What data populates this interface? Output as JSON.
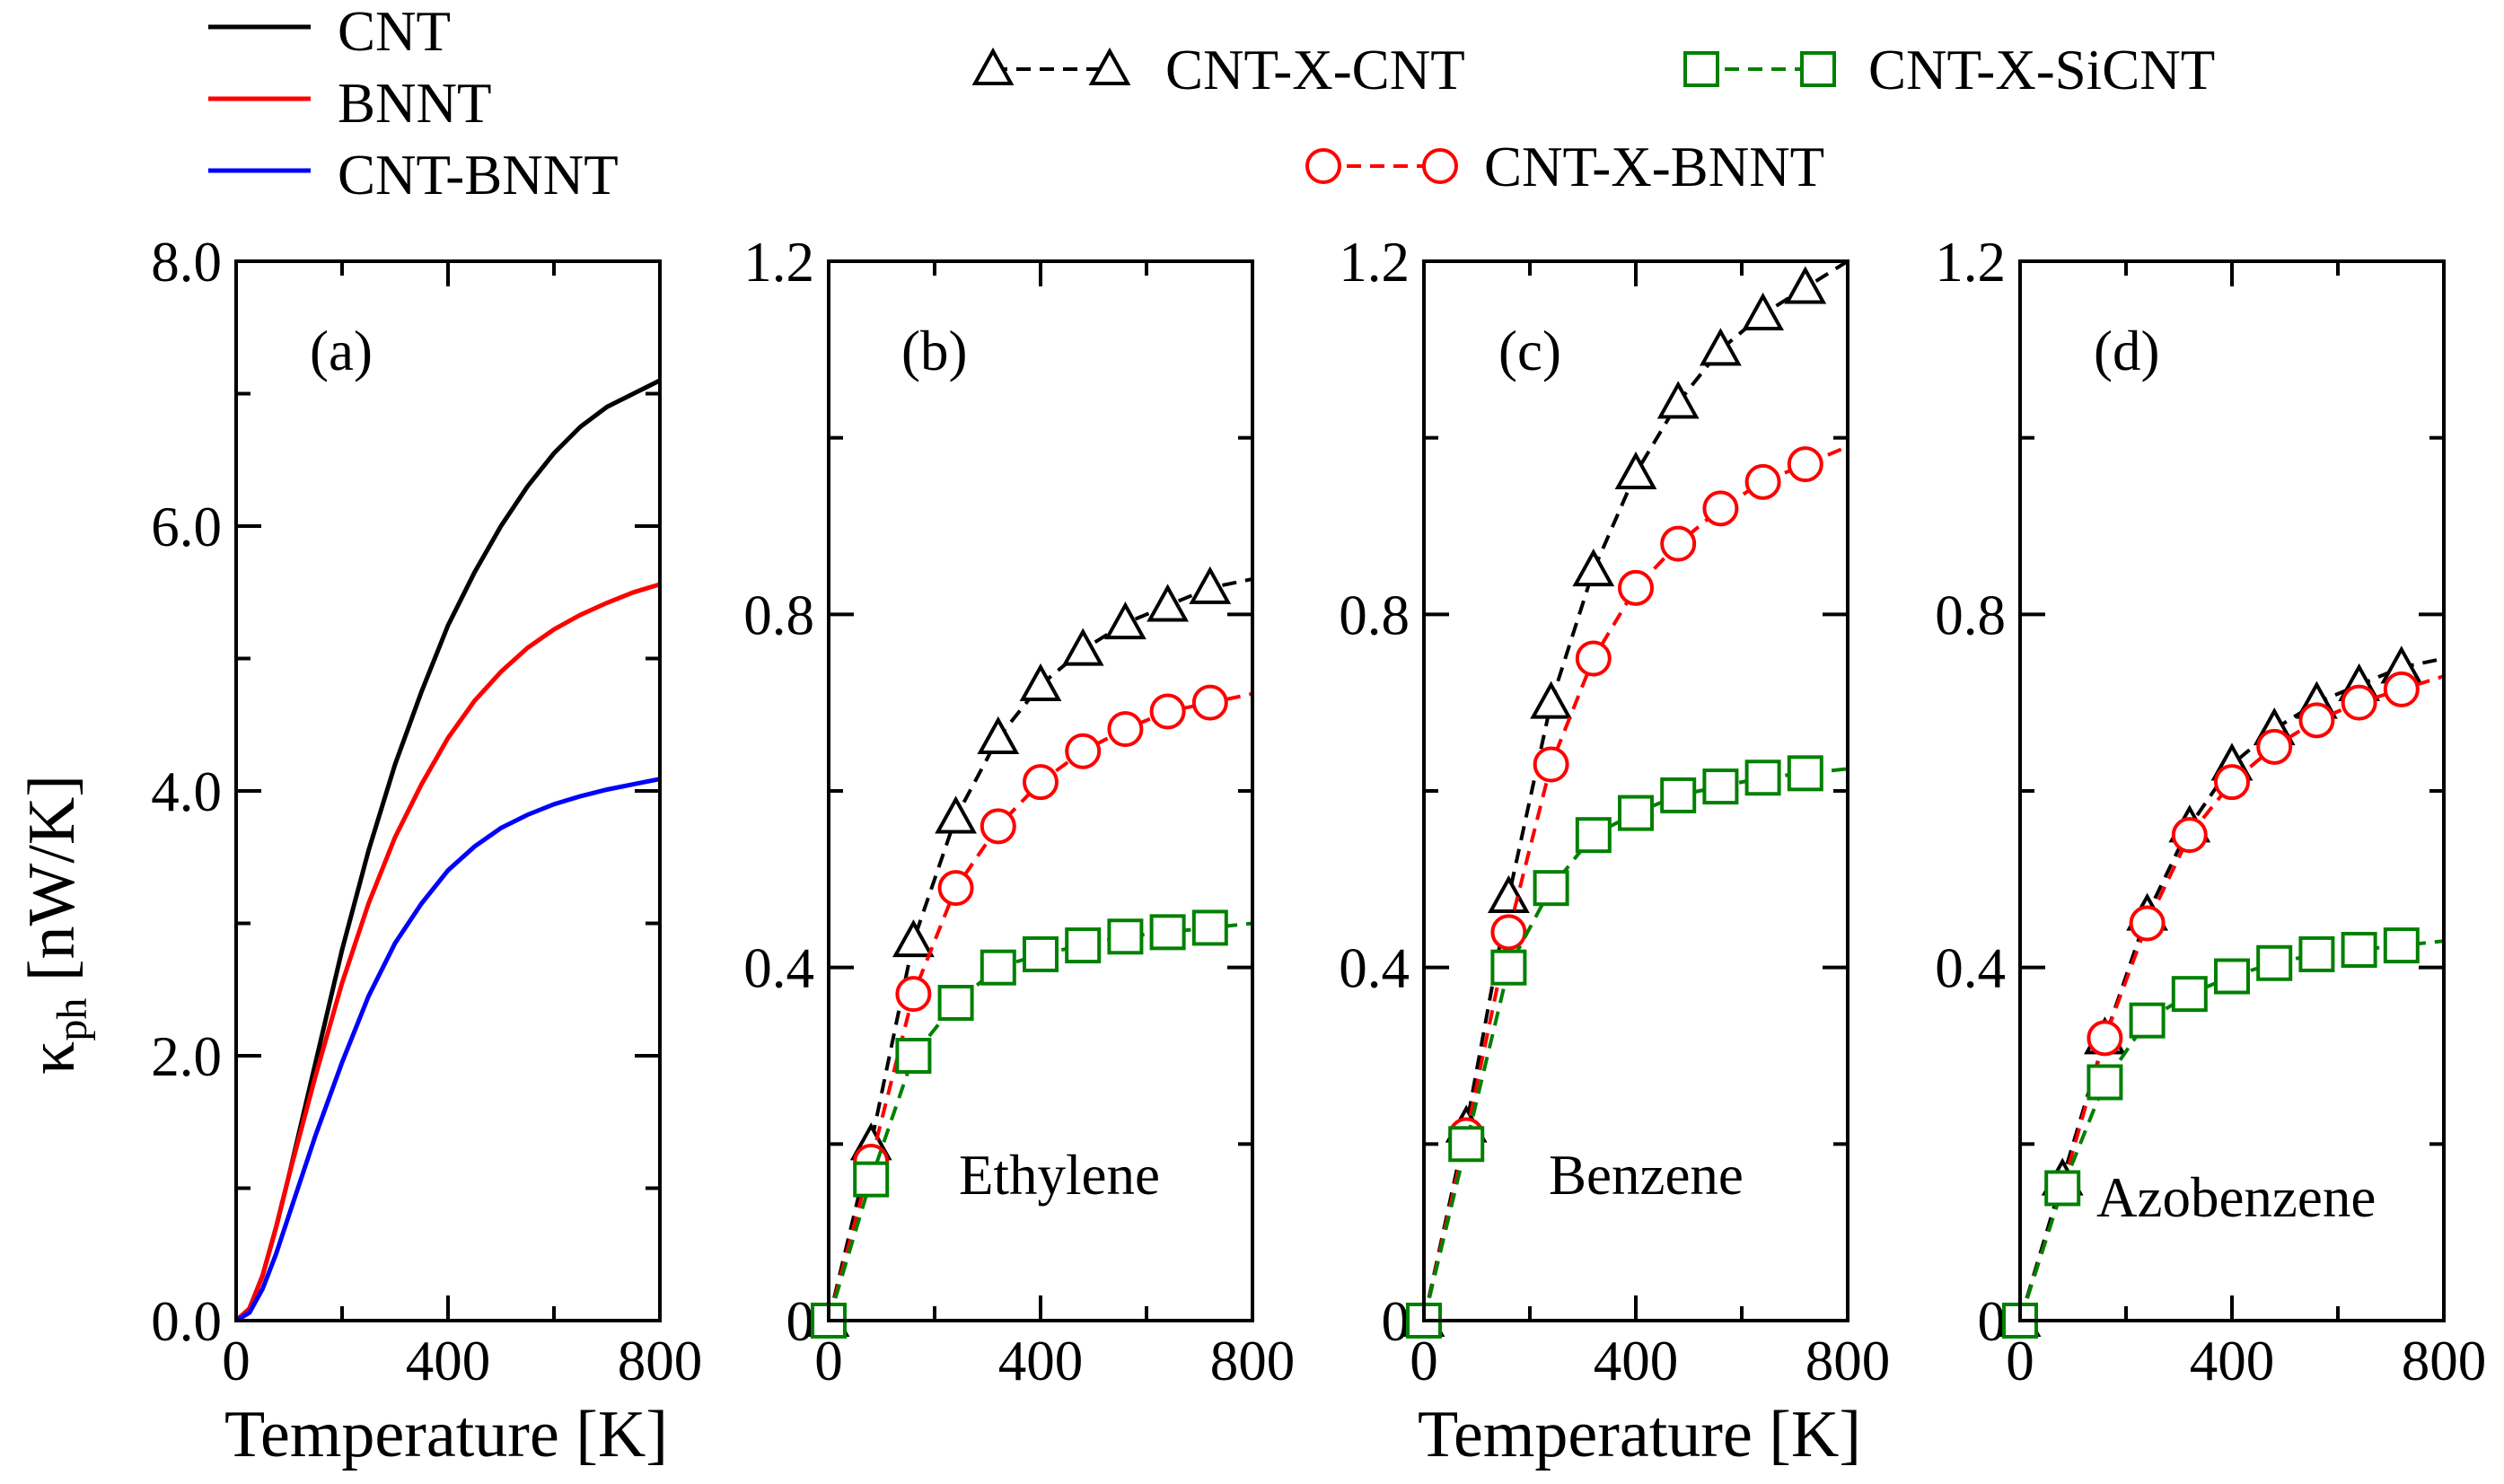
{
  "figure": {
    "ylabel_main": "κ",
    "ylabel_sub": "ph",
    "ylabel_unit": " [nW/K]",
    "xlabel": "Temperature [K]"
  },
  "legend": {
    "left": [
      {
        "label": "CNT",
        "color": "#000000"
      },
      {
        "label": "BNNT",
        "color": "#ff0000"
      },
      {
        "label": "CNT-BNNT",
        "color": "#0000ff"
      }
    ],
    "right": [
      {
        "label": "CNT-X-CNT",
        "color": "#000000",
        "marker": "triangle"
      },
      {
        "label": "CNT-X-SiCNT",
        "color": "#008000",
        "marker": "square"
      },
      {
        "label": "CNT-X-BNNT",
        "color": "#ff0000",
        "marker": "circle"
      }
    ]
  },
  "chart_data": [
    {
      "id": "a",
      "type": "line",
      "panel_label": "(a)",
      "annotation": "",
      "xlim": [
        0,
        800
      ],
      "ylim": [
        0,
        8
      ],
      "xticks": [
        "0",
        "400",
        "800"
      ],
      "yticks": [
        "0.0",
        "2.0",
        "4.0",
        "6.0",
        "8.0"
      ],
      "ytick_values": [
        0,
        2,
        4,
        6,
        8
      ],
      "series": [
        {
          "name": "CNT",
          "color": "#000000",
          "x": [
            0,
            25,
            50,
            75,
            100,
            150,
            200,
            250,
            300,
            350,
            400,
            450,
            500,
            550,
            600,
            650,
            700,
            750,
            800
          ],
          "y": [
            0,
            0.09,
            0.34,
            0.7,
            1.1,
            1.95,
            2.8,
            3.55,
            4.2,
            4.75,
            5.25,
            5.65,
            6.0,
            6.3,
            6.55,
            6.75,
            6.9,
            7.0,
            7.1
          ]
        },
        {
          "name": "BNNT",
          "color": "#ff0000",
          "x": [
            0,
            25,
            50,
            75,
            100,
            150,
            200,
            250,
            300,
            350,
            400,
            450,
            500,
            550,
            600,
            650,
            700,
            750,
            800
          ],
          "y": [
            0,
            0.09,
            0.34,
            0.7,
            1.1,
            1.85,
            2.55,
            3.15,
            3.65,
            4.05,
            4.4,
            4.68,
            4.9,
            5.08,
            5.22,
            5.33,
            5.42,
            5.5,
            5.56
          ]
        },
        {
          "name": "CNT-BNNT",
          "color": "#0000ff",
          "x": [
            0,
            25,
            50,
            75,
            100,
            150,
            200,
            250,
            300,
            350,
            400,
            450,
            500,
            550,
            600,
            650,
            700,
            750,
            800
          ],
          "y": [
            0,
            0.06,
            0.24,
            0.5,
            0.8,
            1.4,
            1.95,
            2.45,
            2.85,
            3.15,
            3.4,
            3.58,
            3.72,
            3.82,
            3.9,
            3.96,
            4.01,
            4.05,
            4.09
          ]
        }
      ]
    },
    {
      "id": "b",
      "type": "line",
      "panel_label": "(b)",
      "annotation": "Ethylene",
      "xlim": [
        0,
        800
      ],
      "ylim": [
        0,
        1.2
      ],
      "xticks": [
        "0",
        "400",
        "800"
      ],
      "yticks": [
        "0",
        "0.4",
        "0.8",
        "1.2"
      ],
      "ytick_values": [
        0,
        0.4,
        0.8,
        1.2
      ],
      "series": [
        {
          "name": "CNT-X-CNT",
          "color": "#000000",
          "marker": "triangle",
          "x": [
            0,
            80,
            160,
            240,
            320,
            400,
            480,
            560,
            640,
            720,
            800
          ],
          "y": [
            0,
            0.2,
            0.43,
            0.57,
            0.66,
            0.72,
            0.76,
            0.79,
            0.81,
            0.83,
            0.84
          ]
        },
        {
          "name": "CNT-X-BNNT",
          "color": "#ff0000",
          "marker": "circle",
          "x": [
            0,
            80,
            160,
            240,
            320,
            400,
            480,
            560,
            640,
            720,
            800
          ],
          "y": [
            0,
            0.18,
            0.37,
            0.49,
            0.56,
            0.61,
            0.645,
            0.67,
            0.69,
            0.7,
            0.71
          ]
        },
        {
          "name": "CNT-X-SiCNT",
          "color": "#008000",
          "marker": "square",
          "x": [
            0,
            80,
            160,
            240,
            320,
            400,
            480,
            560,
            640,
            720,
            800
          ],
          "y": [
            0,
            0.16,
            0.3,
            0.36,
            0.4,
            0.415,
            0.425,
            0.435,
            0.44,
            0.445,
            0.45
          ]
        }
      ]
    },
    {
      "id": "c",
      "type": "line",
      "panel_label": "(c)",
      "annotation": "Benzene",
      "xlim": [
        0,
        800
      ],
      "ylim": [
        0,
        1.2
      ],
      "xticks": [
        "0",
        "400",
        "800"
      ],
      "yticks": [
        "0",
        "0.4",
        "0.8",
        "1.2"
      ],
      "ytick_values": [
        0,
        0.4,
        0.8,
        1.2
      ],
      "series": [
        {
          "name": "CNT-X-CNT",
          "color": "#000000",
          "marker": "triangle",
          "x": [
            0,
            80,
            160,
            240,
            320,
            400,
            480,
            560,
            640,
            720,
            800
          ],
          "y": [
            0,
            0.22,
            0.48,
            0.7,
            0.85,
            0.96,
            1.04,
            1.1,
            1.14,
            1.17,
            1.2
          ]
        },
        {
          "name": "CNT-X-BNNT",
          "color": "#ff0000",
          "marker": "circle",
          "x": [
            0,
            80,
            160,
            240,
            320,
            400,
            480,
            560,
            640,
            720,
            800
          ],
          "y": [
            0,
            0.21,
            0.44,
            0.63,
            0.75,
            0.83,
            0.88,
            0.92,
            0.95,
            0.97,
            0.99
          ]
        },
        {
          "name": "CNT-X-SiCNT",
          "color": "#008000",
          "marker": "square",
          "x": [
            0,
            80,
            160,
            240,
            320,
            400,
            480,
            560,
            640,
            720,
            800
          ],
          "y": [
            0,
            0.2,
            0.4,
            0.49,
            0.55,
            0.575,
            0.595,
            0.605,
            0.615,
            0.62,
            0.625
          ]
        }
      ]
    },
    {
      "id": "d",
      "type": "line",
      "panel_label": "(d)",
      "annotation": "Azobenzene",
      "xlim": [
        0,
        800
      ],
      "ylim": [
        0,
        1.2
      ],
      "xticks": [
        "0",
        "400",
        "800"
      ],
      "yticks": [
        "0",
        "0.4",
        "0.8",
        "1.2"
      ],
      "ytick_values": [
        0,
        0.4,
        0.8,
        1.2
      ],
      "series": [
        {
          "name": "CNT-X-CNT",
          "color": "#000000",
          "marker": "triangle",
          "x": [
            0,
            80,
            160,
            240,
            320,
            400,
            480,
            560,
            640,
            720,
            800
          ],
          "y": [
            0,
            0.16,
            0.32,
            0.46,
            0.56,
            0.63,
            0.67,
            0.7,
            0.72,
            0.74,
            0.75
          ]
        },
        {
          "name": "CNT-X-BNNT",
          "color": "#ff0000",
          "marker": "circle",
          "x": [
            0,
            80,
            160,
            240,
            320,
            400,
            480,
            560,
            640,
            720,
            800
          ],
          "y": [
            0,
            0.15,
            0.32,
            0.45,
            0.55,
            0.61,
            0.65,
            0.68,
            0.7,
            0.715,
            0.73
          ]
        },
        {
          "name": "CNT-X-SiCNT",
          "color": "#008000",
          "marker": "square",
          "x": [
            0,
            80,
            160,
            240,
            320,
            400,
            480,
            560,
            640,
            720,
            800
          ],
          "y": [
            0,
            0.15,
            0.27,
            0.34,
            0.37,
            0.39,
            0.405,
            0.415,
            0.42,
            0.425,
            0.43
          ]
        }
      ]
    }
  ]
}
